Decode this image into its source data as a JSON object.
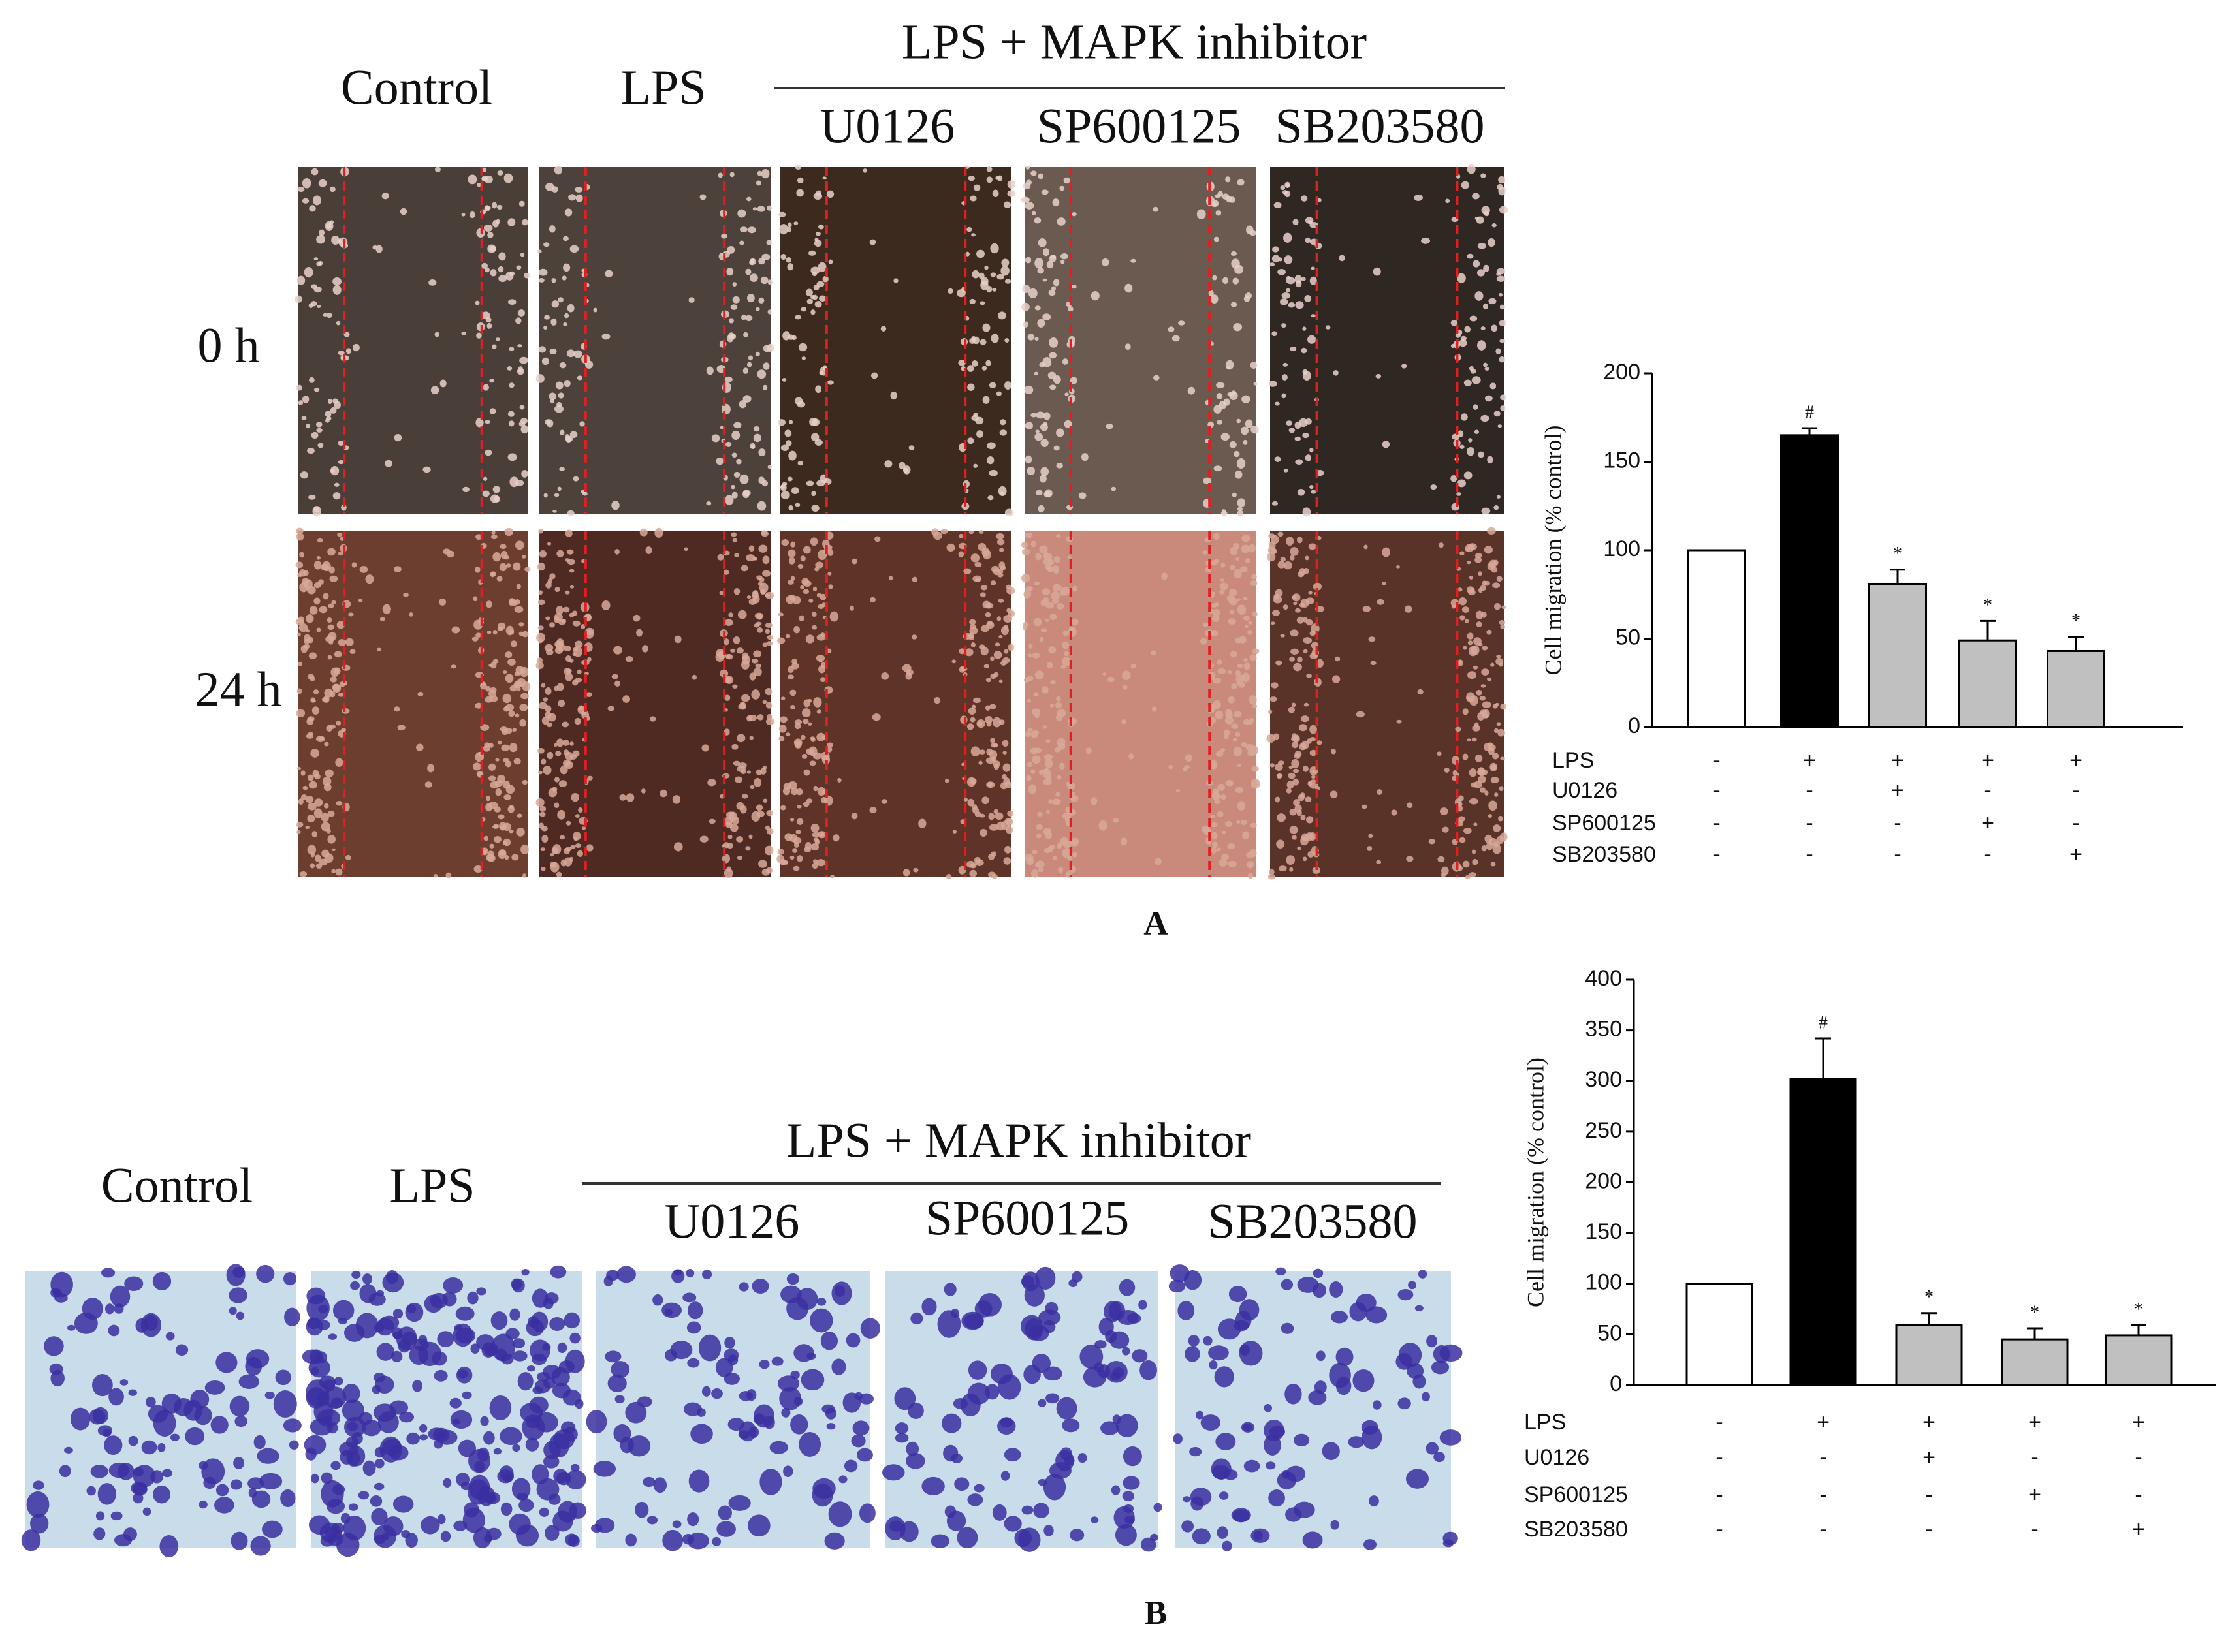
{
  "panel_a": {
    "label": "A",
    "group_label": "LPS + MAPK inhibitor",
    "columns": [
      "Control",
      "LPS",
      "U0126",
      "SP600125",
      "SB203580"
    ],
    "rows": [
      "0 h",
      "24 h"
    ]
  },
  "panel_b": {
    "label": "B",
    "group_label": "LPS + MAPK inhibitor",
    "columns": [
      "Control",
      "LPS",
      "U0126",
      "SP600125",
      "SB203580"
    ]
  },
  "chart_data": [
    {
      "type": "bar",
      "ylabel": "Cell migration (% control)",
      "ylim": [
        0,
        200
      ],
      "yticks": [
        0,
        50,
        100,
        150,
        200
      ],
      "values": [
        100,
        165,
        81,
        49,
        43
      ],
      "errors": [
        0,
        4,
        8,
        11,
        8
      ],
      "colors": [
        "#ffffff",
        "#000000",
        "#c0c0c0",
        "#c0c0c0",
        "#c0c0c0"
      ],
      "annotations": [
        null,
        "#",
        "*",
        "*",
        "*"
      ],
      "conditions": [
        {
          "name": "LPS",
          "signs": [
            "-",
            "+",
            "+",
            "+",
            "+"
          ]
        },
        {
          "name": "U0126",
          "signs": [
            "-",
            "-",
            "+",
            "-",
            "-"
          ]
        },
        {
          "name": "SP600125",
          "signs": [
            "-",
            "-",
            "-",
            "+",
            "-"
          ]
        },
        {
          "name": "SB203580",
          "signs": [
            "-",
            "-",
            "-",
            "-",
            "+"
          ]
        }
      ]
    },
    {
      "type": "bar",
      "ylabel": "Cell migration (% control)",
      "ylim": [
        0,
        400
      ],
      "yticks": [
        0,
        50,
        100,
        150,
        200,
        250,
        300,
        350,
        400
      ],
      "values": [
        100,
        302,
        59,
        45,
        49
      ],
      "errors": [
        0,
        40,
        12,
        11,
        10
      ],
      "colors": [
        "#ffffff",
        "#000000",
        "#c0c0c0",
        "#c0c0c0",
        "#c0c0c0"
      ],
      "annotations": [
        null,
        "#",
        "*",
        "*",
        "*"
      ],
      "conditions": [
        {
          "name": "LPS",
          "signs": [
            "-",
            "+",
            "+",
            "+",
            "+"
          ]
        },
        {
          "name": "U0126",
          "signs": [
            "-",
            "-",
            "+",
            "-",
            "-"
          ]
        },
        {
          "name": "SP600125",
          "signs": [
            "-",
            "-",
            "-",
            "+",
            "-"
          ]
        },
        {
          "name": "SB203580",
          "signs": [
            "-",
            "-",
            "-",
            "-",
            "+"
          ]
        }
      ]
    }
  ]
}
